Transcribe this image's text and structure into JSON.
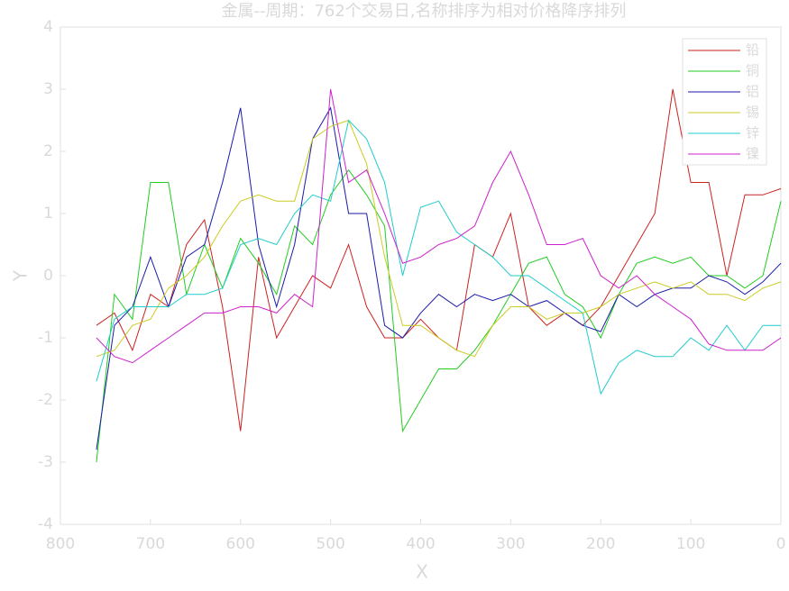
{
  "chart_data": {
    "type": "line",
    "title": "金属--周期：762个交易日,名称排序为相对价格降序排列",
    "x_label": "X",
    "y_label": "Y",
    "x": [
      760,
      740,
      720,
      700,
      680,
      660,
      640,
      620,
      600,
      580,
      560,
      540,
      520,
      500,
      480,
      460,
      440,
      420,
      400,
      380,
      360,
      340,
      320,
      300,
      280,
      260,
      240,
      220,
      200,
      180,
      160,
      140,
      120,
      100,
      80,
      60,
      40,
      20,
      0
    ],
    "series": [
      {
        "name": "铅",
        "color": "#cc2222",
        "values": [
          -0.8,
          -0.6,
          -1.2,
          -0.3,
          -0.5,
          0.5,
          0.9,
          -0.5,
          -2.5,
          0.3,
          -1.0,
          -0.5,
          0,
          -0.2,
          0.5,
          -0.5,
          -1.0,
          -1.0,
          -0.7,
          -1.0,
          -1.2,
          0.5,
          0.3,
          1.0,
          -0.5,
          -0.8,
          -0.6,
          -0.8,
          -0.5,
          0,
          0.5,
          1.0,
          3.0,
          1.5,
          1.5,
          0,
          1.3,
          1.3,
          1.4
        ]
      },
      {
        "name": "铜",
        "color": "#22cc22",
        "values": [
          -3.0,
          -0.3,
          -0.7,
          1.5,
          1.5,
          -0.3,
          0.5,
          -0.2,
          0.6,
          0.2,
          -0.3,
          0.8,
          0.5,
          1.3,
          1.7,
          1.3,
          0.8,
          -2.5,
          -2.0,
          -1.5,
          -1.5,
          -1.2,
          -0.8,
          -0.3,
          0.2,
          0.3,
          -0.3,
          -0.5,
          -1.0,
          -0.3,
          0.2,
          0.3,
          0.2,
          0.3,
          0,
          0,
          -0.2,
          0,
          1.2
        ]
      },
      {
        "name": "铝",
        "color": "#1a1aaa",
        "values": [
          -2.8,
          -0.8,
          -0.5,
          0.3,
          -0.5,
          0.3,
          0.5,
          1.5,
          2.7,
          0.5,
          -0.5,
          0.5,
          2.2,
          2.7,
          1.0,
          1.0,
          -0.8,
          -1.0,
          -0.6,
          -0.3,
          -0.5,
          -0.3,
          -0.4,
          -0.3,
          -0.5,
          -0.4,
          -0.6,
          -0.8,
          -0.9,
          -0.3,
          -0.5,
          -0.3,
          -0.2,
          -0.2,
          0,
          -0.1,
          -0.3,
          -0.1,
          0.2
        ]
      },
      {
        "name": "锡",
        "color": "#cccc22",
        "values": [
          -1.3,
          -1.2,
          -0.8,
          -0.7,
          -0.2,
          0,
          0.3,
          0.8,
          1.2,
          1.3,
          1.2,
          1.2,
          2.2,
          2.4,
          2.5,
          1.8,
          0.3,
          -0.8,
          -0.8,
          -1.0,
          -1.2,
          -1.3,
          -0.8,
          -0.5,
          -0.5,
          -0.7,
          -0.6,
          -0.6,
          -0.5,
          -0.3,
          -0.2,
          -0.1,
          -0.2,
          -0.1,
          -0.3,
          -0.3,
          -0.4,
          -0.2,
          -0.1
        ]
      },
      {
        "name": "锌",
        "color": "#22cccc",
        "values": [
          -1.7,
          -0.7,
          -0.5,
          -0.5,
          -0.5,
          -0.3,
          -0.3,
          -0.2,
          0.5,
          0.6,
          0.5,
          1.0,
          1.3,
          1.2,
          2.5,
          2.2,
          1.5,
          0,
          1.1,
          1.2,
          0.7,
          0.5,
          0.3,
          0,
          0,
          -0.2,
          -0.4,
          -0.6,
          -1.9,
          -1.4,
          -1.2,
          -1.3,
          -1.3,
          -1.0,
          -1.2,
          -0.8,
          -1.2,
          -0.8,
          -0.8
        ]
      },
      {
        "name": "镍",
        "color": "#cc22cc",
        "values": [
          -1.0,
          -1.3,
          -1.4,
          -1.2,
          -1.0,
          -0.8,
          -0.6,
          -0.6,
          -0.5,
          -0.5,
          -0.6,
          -0.3,
          -0.5,
          3.0,
          1.5,
          1.7,
          1.0,
          0.2,
          0.3,
          0.5,
          0.6,
          0.8,
          1.5,
          2.0,
          1.3,
          0.5,
          0.5,
          0.6,
          0,
          -0.2,
          0,
          -0.3,
          -0.5,
          -0.7,
          -1.1,
          -1.2,
          -1.2,
          -1.2,
          -1.0
        ]
      }
    ],
    "xlim": [
      800,
      0
    ],
    "ylim": [
      -4,
      4
    ],
    "xticks": [
      800,
      700,
      600,
      500,
      400,
      300,
      200,
      100,
      0
    ],
    "yticks": [
      -4,
      -3,
      -2,
      -1,
      0,
      1,
      2,
      3,
      4
    ],
    "legend": "top-right",
    "grid": false
  }
}
